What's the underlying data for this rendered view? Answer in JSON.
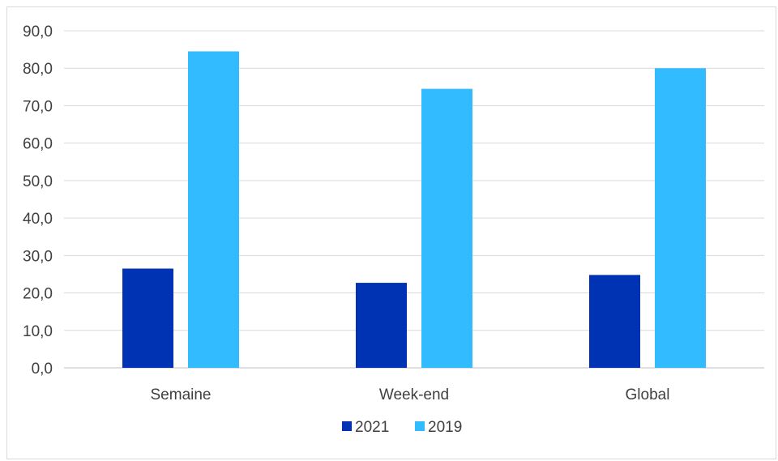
{
  "chart_data": {
    "type": "bar",
    "title": "",
    "xlabel": "",
    "ylabel": "",
    "categories": [
      "Semaine",
      "Week-end",
      "Global"
    ],
    "series": [
      {
        "name": "2021",
        "color": "#0033b3",
        "values": [
          26.5,
          22.7,
          24.8
        ]
      },
      {
        "name": "2019",
        "color": "#33bbff",
        "values": [
          84.5,
          74.5,
          80.0
        ]
      }
    ],
    "ylim": [
      0,
      90
    ],
    "yticks": [
      "0,0",
      "10,0",
      "20,0",
      "30,0",
      "40,0",
      "50,0",
      "60,0",
      "70,0",
      "80,0",
      "90,0"
    ],
    "grid": true,
    "legend_position": "bottom"
  }
}
